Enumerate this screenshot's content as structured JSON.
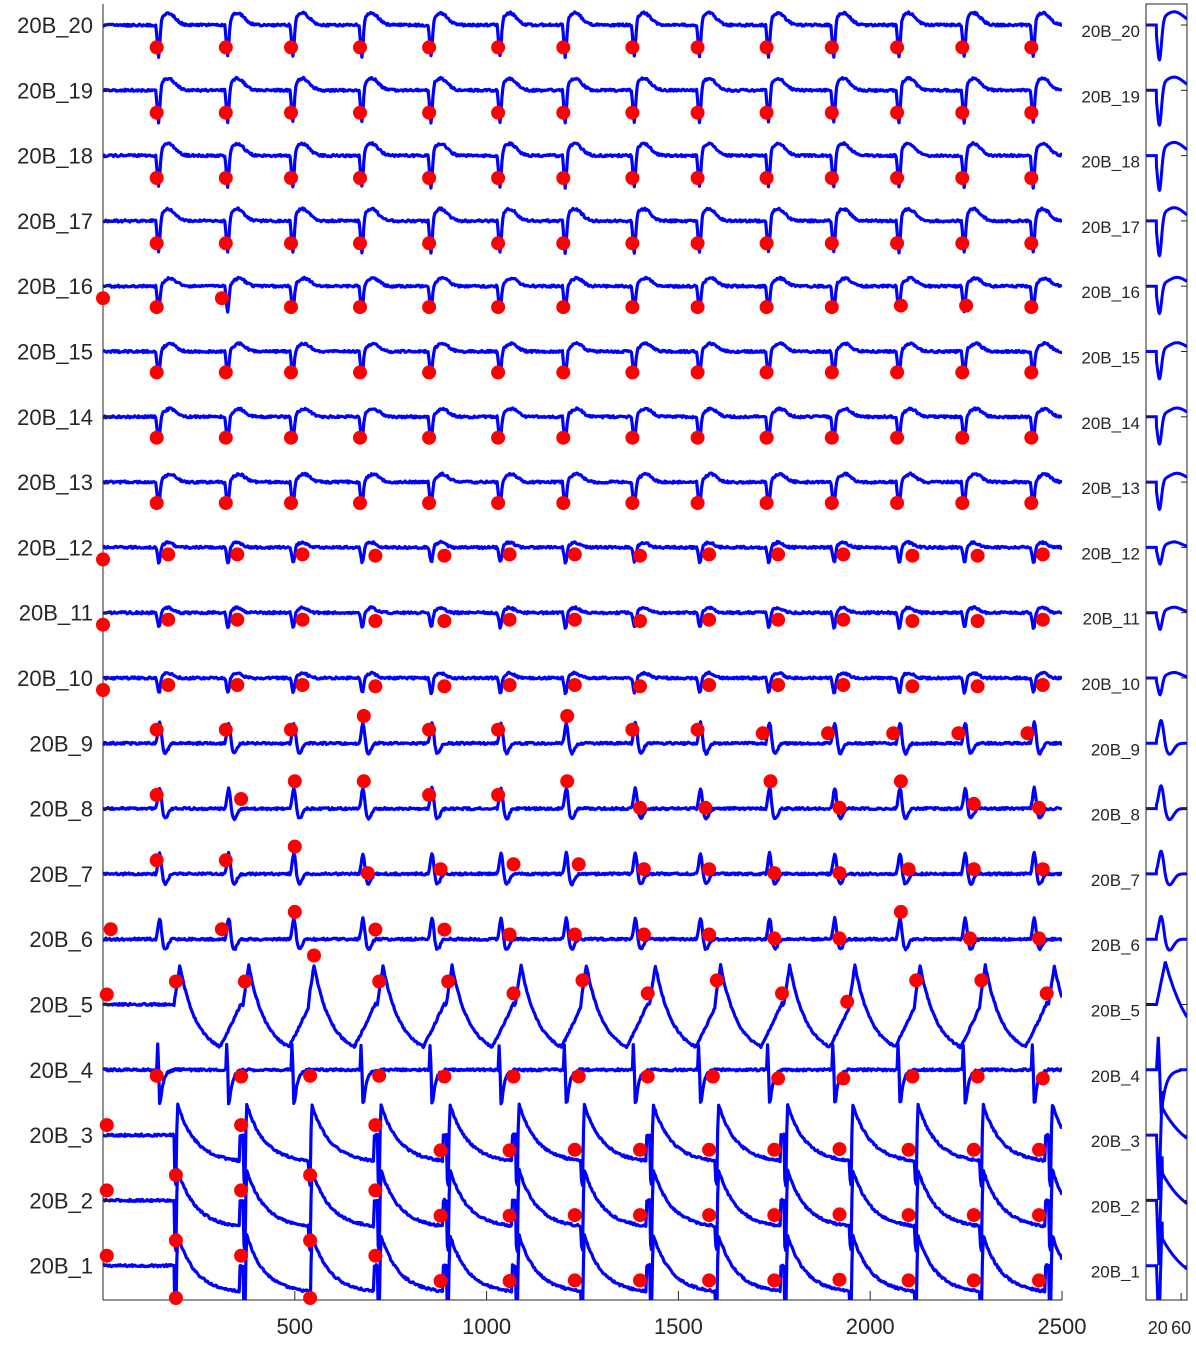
{
  "chart_data": [
    {
      "type": "line",
      "panel": "main",
      "title": "",
      "xlabel": "",
      "ylabel": "",
      "xlim": [
        0,
        2500
      ],
      "x_ticks": [
        500,
        1000,
        1500,
        2000,
        2500
      ],
      "x_tick_labels": [
        "500",
        "1000",
        "1500",
        "2000",
        "2500"
      ],
      "grid": false,
      "legend": "none",
      "line_color": "#0000ff",
      "marker_color": "#ff0000",
      "series_labels_bottom_to_top": [
        "20B_1",
        "20B_2",
        "20B_3",
        "20B_4",
        "20B_5",
        "20B_6",
        "20B_7",
        "20B_8",
        "20B_9",
        "20B_10",
        "20B_11",
        "20B_12",
        "20B_13",
        "20B_14",
        "20B_15",
        "20B_16",
        "20B_17",
        "20B_18",
        "20B_19",
        "20B_20"
      ],
      "beat_times": [
        140,
        320,
        490,
        670,
        850,
        1030,
        1200,
        1380,
        1550,
        1730,
        1900,
        2070,
        2240,
        2420
      ],
      "activation_markers_x": [
        [
          10,
          190,
          360,
          540,
          710,
          880,
          1060,
          1230,
          1400,
          1580,
          1750,
          1920,
          2100,
          2270,
          2440
        ],
        [
          10,
          190,
          360,
          540,
          710,
          880,
          1060,
          1230,
          1400,
          1580,
          1750,
          1920,
          2100,
          2270,
          2440
        ],
        [
          10,
          190,
          360,
          540,
          710,
          880,
          1060,
          1230,
          1400,
          1580,
          1750,
          1920,
          2100,
          2270,
          2440
        ],
        [
          140,
          360,
          540,
          720,
          890,
          1070,
          1240,
          1420,
          1590,
          1760,
          1930,
          2110,
          2280,
          2450
        ],
        [
          10,
          190,
          370,
          550,
          720,
          900,
          1070,
          1250,
          1420,
          1600,
          1770,
          1940,
          2120,
          2290,
          2460
        ],
        [
          20,
          310,
          500,
          710,
          890,
          1060,
          1230,
          1410,
          1580,
          1750,
          1920,
          2080,
          2260,
          2440
        ],
        [
          140,
          320,
          500,
          690,
          880,
          1070,
          1240,
          1410,
          1580,
          1750,
          1920,
          2100,
          2270,
          2450
        ],
        [
          140,
          360,
          500,
          680,
          850,
          1030,
          1210,
          1400,
          1570,
          1740,
          1920,
          2080,
          2270,
          2440
        ],
        [
          140,
          320,
          490,
          680,
          850,
          1030,
          1210,
          1380,
          1550,
          1720,
          1890,
          2060,
          2230,
          2410
        ],
        [
          0,
          170,
          350,
          520,
          710,
          890,
          1060,
          1230,
          1400,
          1580,
          1760,
          1930,
          2110,
          2280,
          2450
        ],
        [
          0,
          170,
          350,
          520,
          710,
          890,
          1060,
          1230,
          1400,
          1580,
          1760,
          1930,
          2110,
          2280,
          2450
        ],
        [
          0,
          170,
          350,
          520,
          710,
          890,
          1060,
          1230,
          1400,
          1580,
          1760,
          1930,
          2110,
          2280,
          2450
        ],
        [
          140,
          320,
          490,
          670,
          850,
          1030,
          1200,
          1380,
          1550,
          1730,
          1900,
          2070,
          2240,
          2420
        ],
        [
          140,
          320,
          490,
          670,
          850,
          1030,
          1200,
          1380,
          1550,
          1730,
          1900,
          2070,
          2240,
          2420
        ],
        [
          140,
          320,
          490,
          670,
          850,
          1030,
          1200,
          1380,
          1550,
          1730,
          1900,
          2070,
          2240,
          2420
        ],
        [
          0,
          140,
          310,
          490,
          670,
          850,
          1030,
          1200,
          1380,
          1550,
          1730,
          1900,
          2080,
          2250,
          2420
        ],
        [
          140,
          320,
          490,
          670,
          850,
          1030,
          1200,
          1380,
          1550,
          1730,
          1900,
          2070,
          2240,
          2420
        ],
        [
          140,
          320,
          490,
          670,
          850,
          1030,
          1200,
          1380,
          1550,
          1730,
          1900,
          2070,
          2240,
          2420
        ],
        [
          140,
          320,
          490,
          670,
          850,
          1030,
          1200,
          1380,
          1550,
          1730,
          1900,
          2070,
          2240,
          2420
        ],
        [
          140,
          320,
          490,
          670,
          850,
          1030,
          1200,
          1380,
          1550,
          1730,
          1900,
          2070,
          2240,
          2420
        ]
      ]
    },
    {
      "type": "line",
      "panel": "inset",
      "title": "",
      "xlabel": "",
      "ylabel": "",
      "xlim": [
        0,
        70
      ],
      "x_ticks": [
        20,
        60
      ],
      "x_tick_labels": [
        "20",
        "60"
      ],
      "grid": false,
      "legend": "none",
      "line_color": "#0000ff",
      "series_labels_bottom_to_top": [
        "20B_1",
        "20B_2",
        "20B_3",
        "20B_4",
        "20B_5",
        "20B_6",
        "20B_7",
        "20B_8",
        "20B_9",
        "20B_10",
        "20B_11",
        "20B_12",
        "20B_13",
        "20B_14",
        "20B_15",
        "20B_16",
        "20B_17",
        "20B_18",
        "20B_19",
        "20B_20"
      ]
    }
  ]
}
